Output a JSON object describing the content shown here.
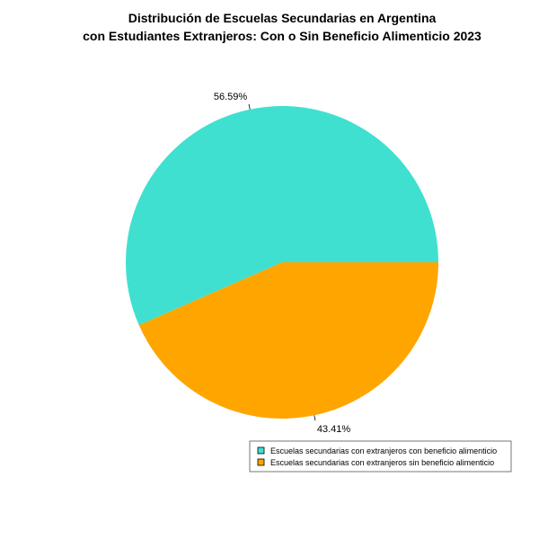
{
  "chart_data": {
    "type": "pie",
    "title": "Distribución de Escuelas Secundarias en Argentina",
    "subtitle": "con Estudiantes Extranjeros: Con o Sin Beneficio Alimenticio 2023",
    "categories": [
      "Escuelas secundarias con extranjeros con beneficio alimenticio",
      "Escuelas secundarias con extranjeros sin beneficio alimenticio"
    ],
    "values": [
      56.59,
      43.41
    ],
    "labels": [
      "56.59%",
      "43.41%"
    ],
    "colors": [
      "#40E0D0",
      "#FFA500"
    ],
    "legend_position": "bottom-right"
  }
}
